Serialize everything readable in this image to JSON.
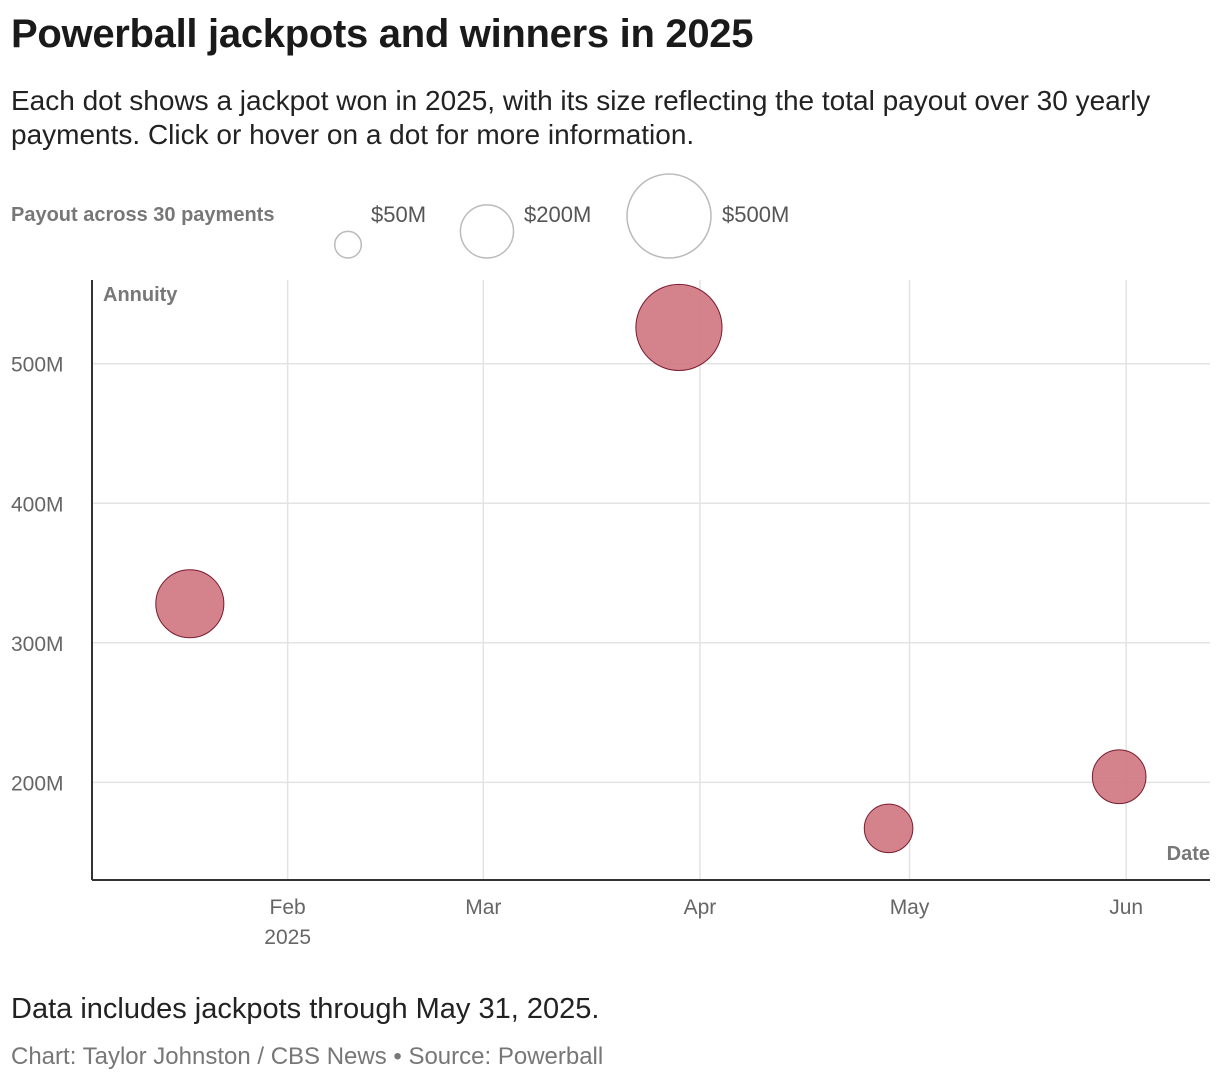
{
  "header": {
    "title": "Powerball jackpots and winners in 2025",
    "subtitle": "Each dot shows a jackpot won in 2025, with its size reflecting the total payout over 30 yearly payments. Click or hover on a dot for more information."
  },
  "legend": {
    "title": "Payout across 30 payments",
    "items": [
      {
        "label": "$50M",
        "value": 50
      },
      {
        "label": "$200M",
        "value": 200
      },
      {
        "label": "$500M",
        "value": 500
      }
    ]
  },
  "chart_data": {
    "type": "scatter",
    "xlabel": "Date",
    "ylabel": "Annuity",
    "x_range": [
      "2025-01-04",
      "2025-06-13"
    ],
    "ylim": [
      130,
      560
    ],
    "y_ticks": [
      {
        "value": 200,
        "label": "200M"
      },
      {
        "value": 300,
        "label": "300M"
      },
      {
        "value": 400,
        "label": "400M"
      },
      {
        "value": 500,
        "label": "500M"
      }
    ],
    "x_ticks": [
      {
        "date": "2025-02-01",
        "label": "Feb",
        "sublabel": "2025"
      },
      {
        "date": "2025-03-01",
        "label": "Mar",
        "sublabel": ""
      },
      {
        "date": "2025-04-01",
        "label": "Apr",
        "sublabel": ""
      },
      {
        "date": "2025-05-01",
        "label": "May",
        "sublabel": ""
      },
      {
        "date": "2025-06-01",
        "label": "Jun",
        "sublabel": ""
      }
    ],
    "grid": true,
    "points": [
      {
        "date": "2025-01-18",
        "annuity": 328
      },
      {
        "date": "2025-03-29",
        "annuity": 526
      },
      {
        "date": "2025-04-28",
        "annuity": 167
      },
      {
        "date": "2025-05-31",
        "annuity": 204
      }
    ],
    "colors": {
      "dot_fill": "#cf7580",
      "dot_stroke": "#7a1a2e",
      "grid": "#e3e3e3",
      "axis": "#333333",
      "legend_circle": "#bbbbbb"
    }
  },
  "footer": {
    "note": "Data includes jackpots through May 31, 2025.",
    "credit": "Chart: Taylor Johnston / CBS News • Source: Powerball"
  }
}
